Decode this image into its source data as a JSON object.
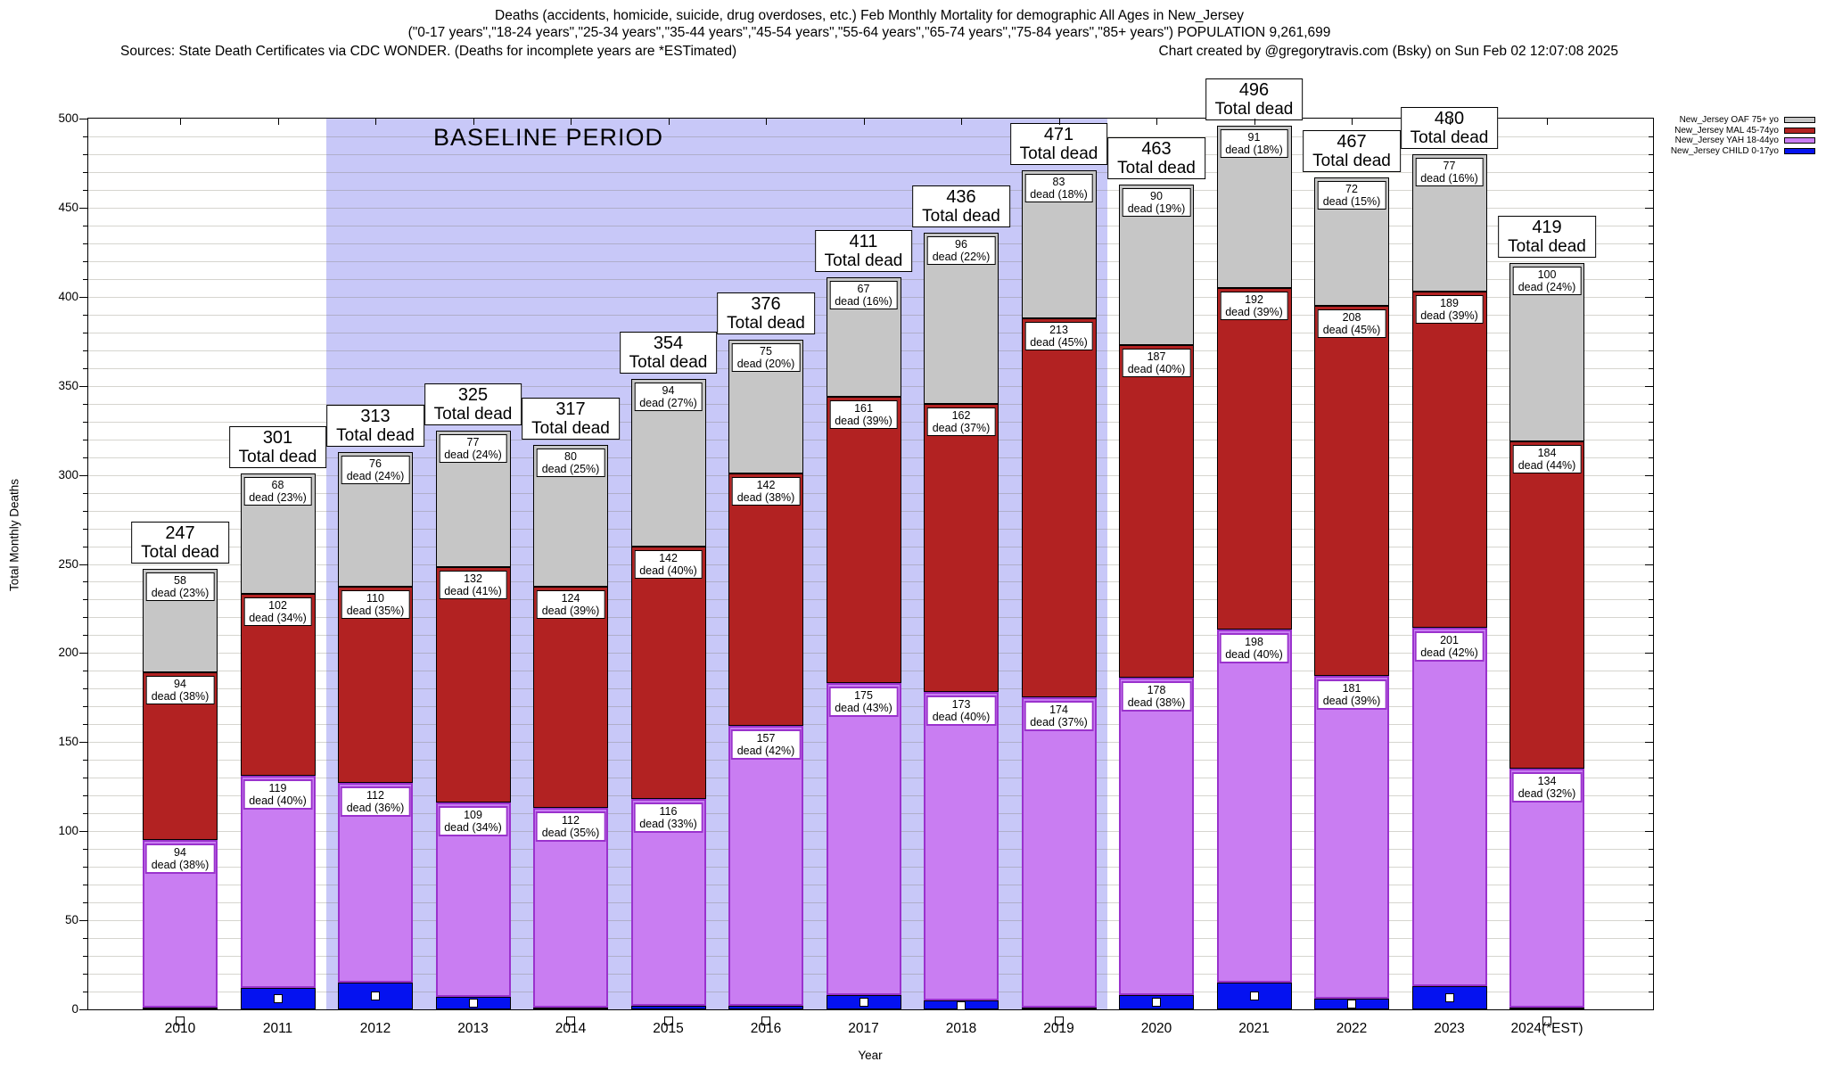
{
  "title": {
    "line1": "Deaths (accidents, homicide, suicide, drug overdoses, etc.) Feb Monthly Mortality for demographic All Ages in New_Jersey",
    "line2": "(\"0-17 years\",\"18-24 years\",\"25-34 years\",\"35-44 years\",\"45-54 years\",\"55-64 years\",\"65-74 years\",\"75-84 years\",\"85+ years\") POPULATION 9,261,699",
    "line3_left": "Sources: State Death Certificates via CDC WONDER. (Deaths for incomplete years are *ESTimated)",
    "line3_right": "Chart created by @gregorytravis.com (Bsky) on Sun Feb 02 12:07:08 2025"
  },
  "chart_data": {
    "type": "bar",
    "stacked": true,
    "xlabel": "Year",
    "ylabel": "Total Monthly Deaths",
    "ylim": [
      0,
      500
    ],
    "ytick_step": 50,
    "minor_grid_step": 10,
    "grid": true,
    "legend_position": "top-right-outside",
    "categories": [
      "2010",
      "2011",
      "2012",
      "2013",
      "2014",
      "2015",
      "2016",
      "2017",
      "2018",
      "2019",
      "2020",
      "2021",
      "2022",
      "2023",
      "2024(*EST)"
    ],
    "totals": [
      247,
      301,
      313,
      325,
      317,
      354,
      376,
      411,
      436,
      471,
      463,
      496,
      467,
      480,
      419
    ],
    "total_label_suffix": "Total dead",
    "segment_label_format": "{value} dead ({pct}%)",
    "baseline_band": {
      "label": "BASELINE PERIOD",
      "start_after_category": "2011",
      "end_after_category": "2019",
      "color": "#c8c8f8"
    },
    "series": [
      {
        "key": "child",
        "name": "New_Jersey CHILD 0-17yo",
        "fill": "#0512f0",
        "border": "#000000",
        "labeled": false,
        "values": [
          1,
          12,
          15,
          7,
          1,
          2,
          2,
          8,
          5,
          1,
          8,
          15,
          6,
          13,
          1
        ]
      },
      {
        "key": "yah",
        "name": "New_Jersey YAH 18-44yo",
        "fill": "#c97df2",
        "border": "#9a32cd",
        "labeled": true,
        "values": [
          94,
          119,
          112,
          109,
          112,
          116,
          157,
          175,
          173,
          174,
          178,
          198,
          181,
          201,
          134
        ],
        "pct": [
          38,
          40,
          36,
          34,
          35,
          33,
          42,
          43,
          40,
          37,
          38,
          40,
          39,
          42,
          32
        ]
      },
      {
        "key": "mal",
        "name": "New_Jersey MAL 45-74yo",
        "fill": "#b22222",
        "border": "#000000",
        "labeled": true,
        "values": [
          94,
          102,
          110,
          132,
          124,
          142,
          142,
          161,
          162,
          213,
          187,
          192,
          208,
          189,
          184
        ],
        "pct": [
          38,
          34,
          35,
          41,
          39,
          40,
          38,
          39,
          37,
          45,
          40,
          39,
          45,
          39,
          44
        ]
      },
      {
        "key": "oaf",
        "name": "New_Jersey OAF 75+ yo",
        "fill": "#c6c6c6",
        "border": "#000000",
        "labeled": true,
        "values": [
          58,
          68,
          76,
          77,
          80,
          94,
          75,
          67,
          96,
          83,
          90,
          91,
          72,
          77,
          100
        ],
        "pct": [
          23,
          23,
          24,
          24,
          25,
          27,
          20,
          16,
          22,
          18,
          19,
          18,
          15,
          16,
          24
        ]
      }
    ],
    "legend": [
      {
        "label": "New_Jersey OAF 75+ yo",
        "fill": "#c6c6c6"
      },
      {
        "label": "New_Jersey MAL 45-74yo",
        "fill": "#b22222"
      },
      {
        "label": "New_Jersey YAH 18-44yo",
        "fill": "#c97df2"
      },
      {
        "label": "New_Jersey CHILD 0-17yo",
        "fill": "#0512f0"
      }
    ]
  }
}
